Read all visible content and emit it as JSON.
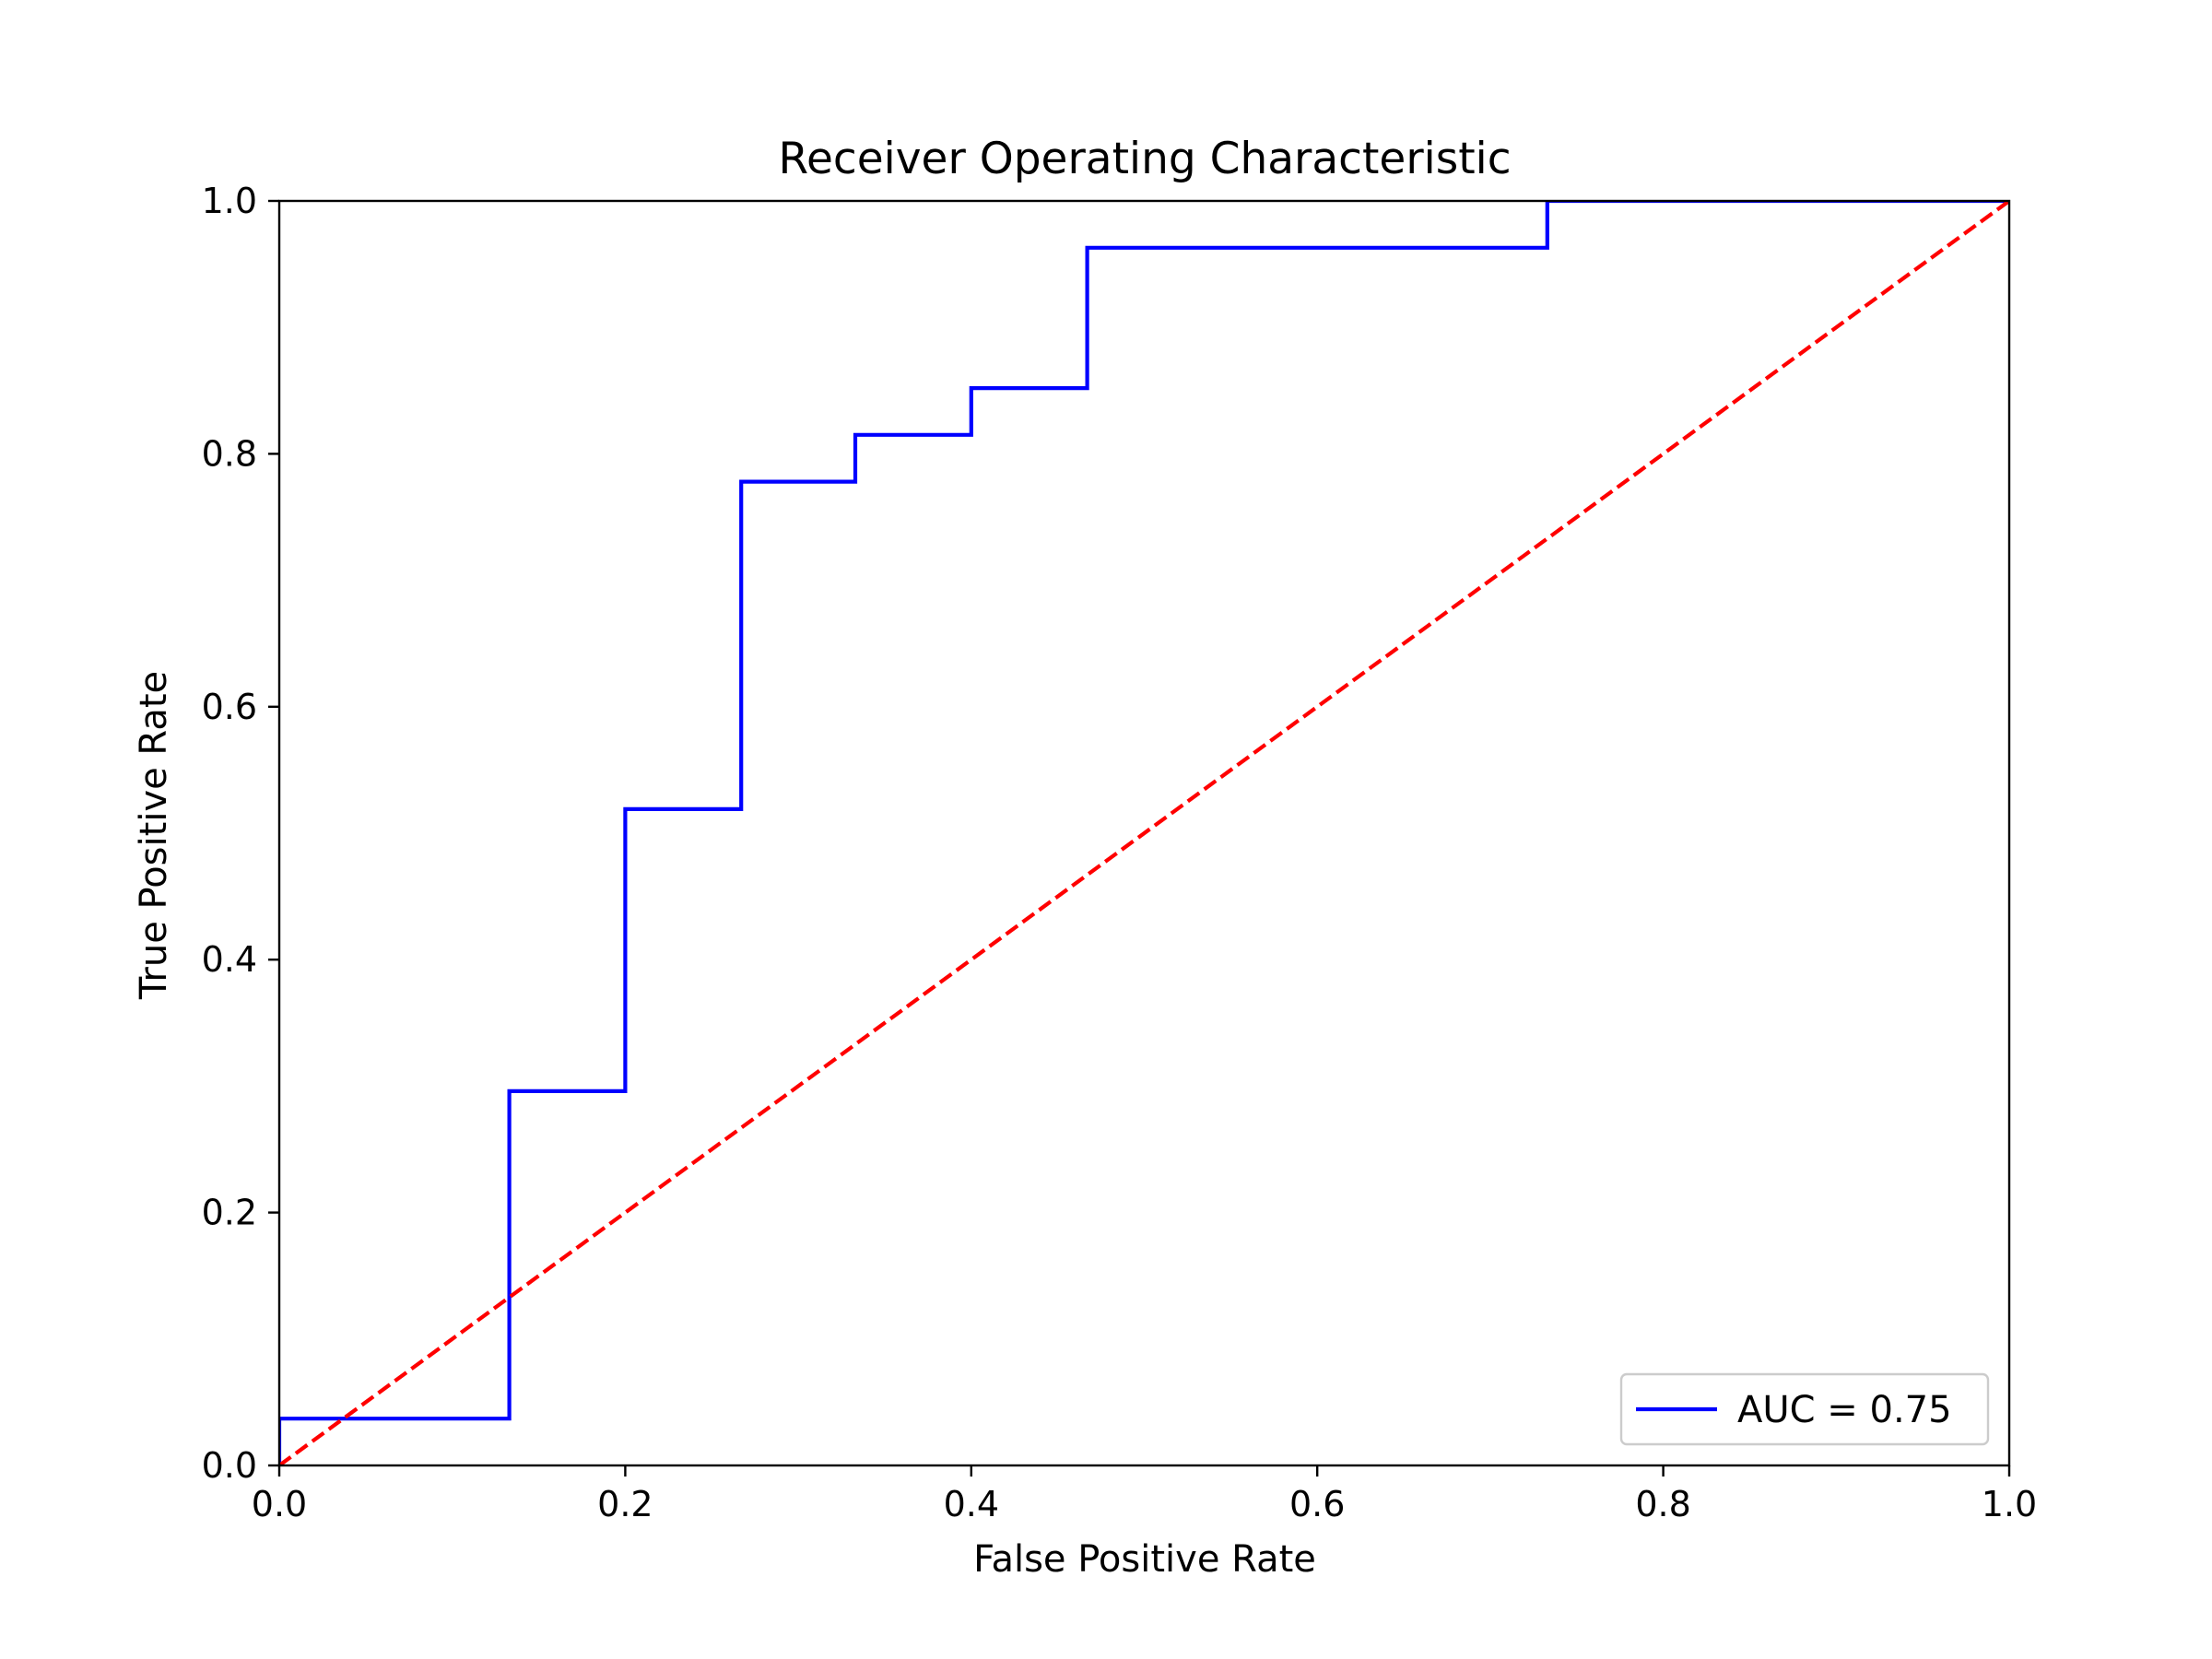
{
  "chart_data": {
    "type": "line",
    "title": "Receiver Operating Characteristic",
    "xlabel": "False Positive Rate",
    "ylabel": "True Positive Rate",
    "xlim": [
      0.0,
      1.0
    ],
    "ylim": [
      0.0,
      1.0
    ],
    "xticks": [
      "0.0",
      "0.2",
      "0.4",
      "0.6",
      "0.8",
      "1.0"
    ],
    "yticks": [
      "0.0",
      "0.2",
      "0.4",
      "0.6",
      "0.8",
      "1.0"
    ],
    "grid": false,
    "legend_position": "lower-right",
    "series": [
      {
        "name": "AUC = 0.75",
        "style": "solid",
        "color": "#0000ff",
        "x": [
          0.0,
          0.0,
          0.133,
          0.133,
          0.2,
          0.2,
          0.267,
          0.267,
          0.333,
          0.333,
          0.4,
          0.4,
          0.467,
          0.467,
          0.733,
          0.733,
          1.0
        ],
        "y": [
          0.0,
          0.037,
          0.037,
          0.296,
          0.296,
          0.519,
          0.519,
          0.778,
          0.778,
          0.815,
          0.815,
          0.852,
          0.852,
          0.963,
          0.963,
          1.0,
          1.0
        ]
      },
      {
        "style": "dashed",
        "color": "#ff0000",
        "x": [
          0.0,
          1.0
        ],
        "y": [
          0.0,
          1.0
        ]
      }
    ]
  }
}
